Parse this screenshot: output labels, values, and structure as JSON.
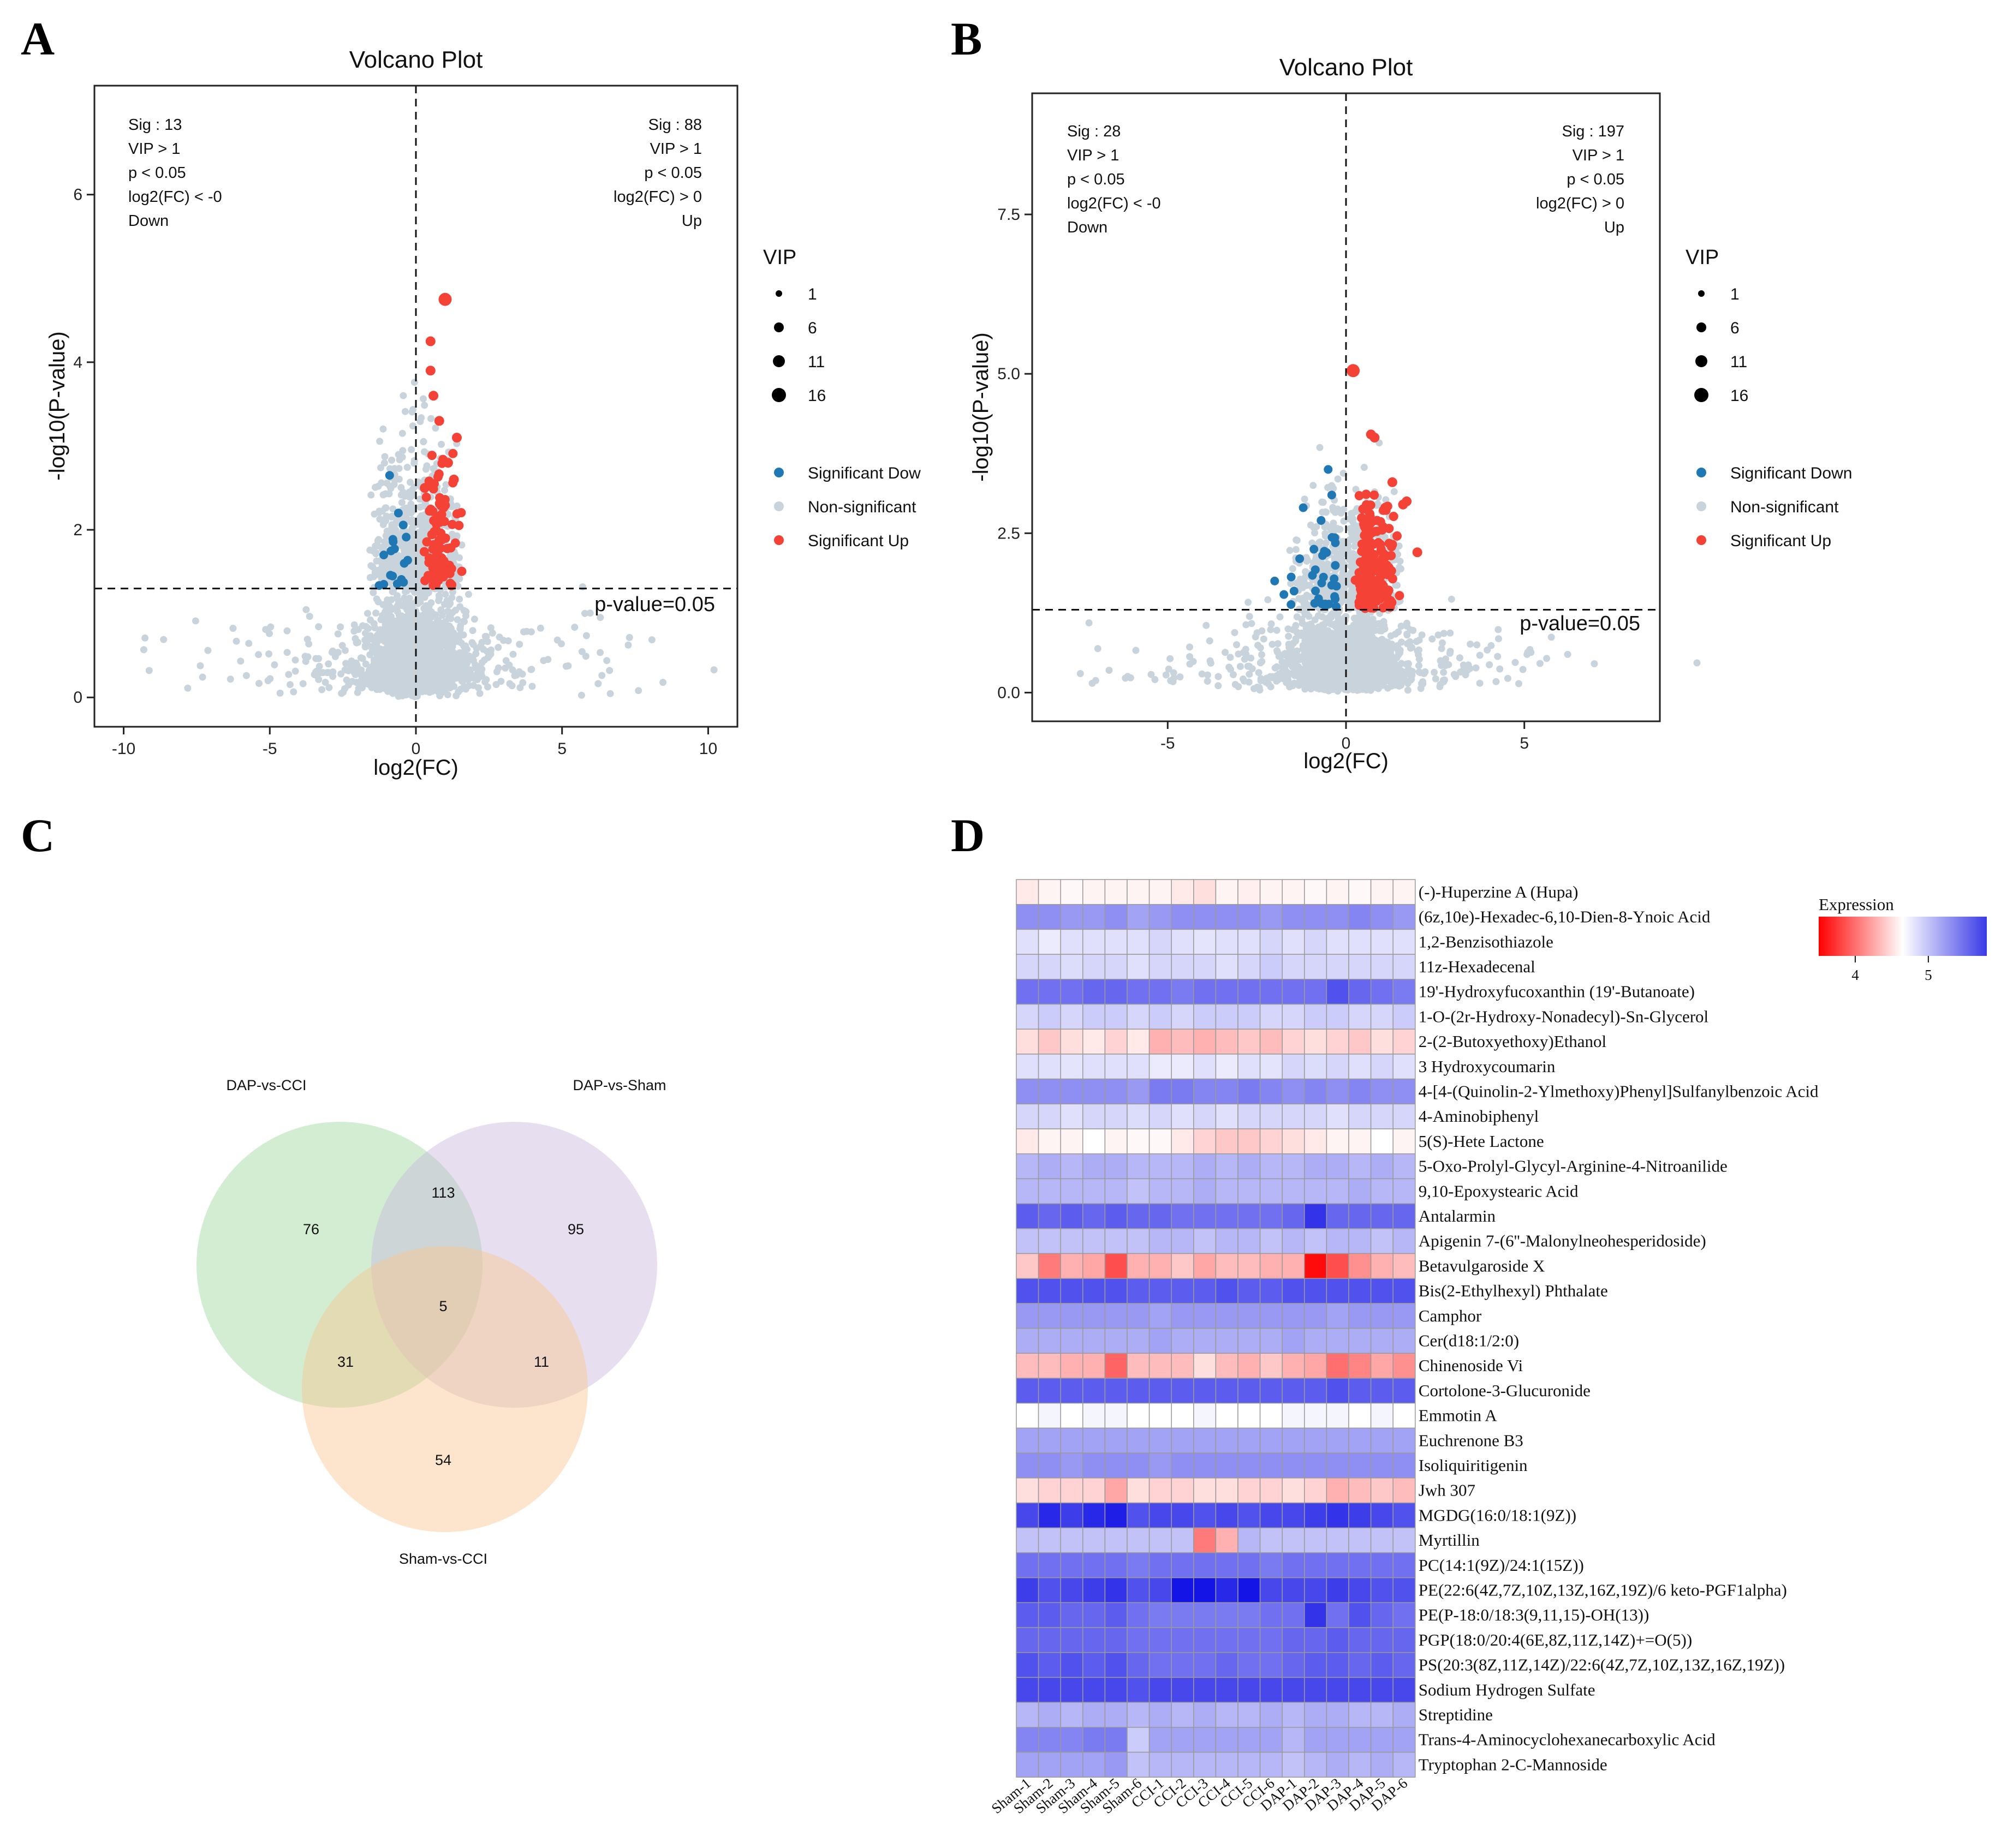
{
  "panels": {
    "A": "A",
    "B": "B",
    "C": "C",
    "D": "D"
  },
  "colors": {
    "down": "#1f77b4",
    "up": "#f44336",
    "nonsig": "#c9d3dc",
    "venn_dap_cci": "#8fd18f",
    "venn_dap_sham": "#c9b8dc",
    "venn_sham_cci": "#f8c58e"
  },
  "chart_data": [
    {
      "id": "A",
      "type": "scatter",
      "title": "Volcano Plot",
      "xlabel": "log2(FC)",
      "ylabel": "-log10(P-value)",
      "xlim": [
        -11,
        11
      ],
      "ylim": [
        -0.35,
        7.3
      ],
      "xticks": [
        -10,
        -5,
        0,
        5,
        10
      ],
      "yticks": [
        0,
        2,
        4,
        6
      ],
      "threshold_y": 1.3,
      "threshold_label": "p-value=0.05",
      "annotation_left": [
        "Sig : 13",
        "VIP > 1",
        "p < 0.05",
        "log2(FC) < -0",
        "Down"
      ],
      "annotation_right": [
        "Sig : 88",
        "VIP > 1",
        "p < 0.05",
        "log2(FC) > 0",
        "Up"
      ],
      "legend_vip_title": "VIP",
      "legend_vip": [
        "1",
        "6",
        "11",
        "16"
      ],
      "legend_groups": [
        "Significant Dow",
        "Non-significant",
        "Significant Up"
      ],
      "n_down": 13,
      "n_up": 88,
      "highlight_up": [
        [
          1.0,
          4.75
        ],
        [
          0.5,
          4.25
        ],
        [
          0.5,
          3.9
        ],
        [
          0.6,
          3.6
        ],
        [
          0.8,
          3.3
        ],
        [
          1.4,
          3.1
        ],
        [
          1.1,
          2.8
        ],
        [
          1.3,
          2.6
        ],
        [
          0.3,
          2.5
        ]
      ],
      "highlight_down": [
        [
          -0.9,
          2.65
        ],
        [
          -0.6,
          2.2
        ],
        [
          -1.1,
          1.7
        ],
        [
          -0.4,
          1.6
        ],
        [
          -1.1,
          1.35
        ],
        [
          -0.5,
          1.4
        ]
      ]
    },
    {
      "id": "B",
      "type": "scatter",
      "title": "Volcano Plot",
      "xlabel": "log2(FC)",
      "ylabel": "-log10(P-value)",
      "xlim": [
        -8.8,
        8.8
      ],
      "ylim": [
        -0.45,
        9.4
      ],
      "xticks": [
        -5,
        0,
        5
      ],
      "yticks": [
        0.0,
        2.5,
        5.0,
        7.5
      ],
      "ytick_labels": [
        "0.0",
        "2.5",
        "5.0",
        "7.5"
      ],
      "threshold_y": 1.3,
      "threshold_label": "p-value=0.05",
      "annotation_left": [
        "Sig : 28",
        "VIP > 1",
        "p < 0.05",
        "log2(FC) < -0",
        "Down"
      ],
      "annotation_right": [
        "Sig : 197",
        "VIP > 1",
        "p < 0.05",
        "log2(FC) > 0",
        "Up"
      ],
      "legend_vip_title": "VIP",
      "legend_vip": [
        "1",
        "6",
        "11",
        "16"
      ],
      "legend_groups": [
        "Significant Down",
        "Non-significant",
        "Significant Up"
      ],
      "n_down": 28,
      "n_up": 197,
      "highlight_up": [
        [
          0.2,
          5.05
        ],
        [
          0.7,
          4.05
        ],
        [
          0.8,
          4.0
        ],
        [
          1.3,
          3.3
        ],
        [
          1.7,
          3.0
        ],
        [
          1.6,
          2.95
        ],
        [
          2.0,
          2.2
        ],
        [
          1.1,
          2.9
        ]
      ],
      "highlight_down": [
        [
          -0.5,
          3.5
        ],
        [
          -0.4,
          3.1
        ],
        [
          -1.2,
          2.9
        ],
        [
          -0.7,
          2.7
        ],
        [
          -0.9,
          2.25
        ],
        [
          -1.3,
          2.1
        ],
        [
          -2.0,
          1.75
        ],
        [
          -0.3,
          2.35
        ]
      ]
    },
    {
      "id": "C",
      "type": "venn",
      "sets": [
        "DAP-vs-CCI",
        "DAP-vs-Sham",
        "Sham-vs-CCI"
      ],
      "regions": {
        "only_dap_cci": 76,
        "only_dap_sham": 95,
        "only_sham_cci": 54,
        "dap_cci_dap_sham": 113,
        "dap_cci_sham_cci": 31,
        "dap_sham_sham_cci": 11,
        "all": 5
      }
    },
    {
      "id": "D",
      "type": "heatmap",
      "legend_title": "Expression",
      "legend_ticks": [
        "4",
        "5"
      ],
      "legend_range": [
        3.5,
        5.8
      ],
      "columns": [
        "Sham-1",
        "Sham-2",
        "Sham-3",
        "Sham-4",
        "Sham-5",
        "Sham-6",
        "CCI-1",
        "CCI-2",
        "CCI-3",
        "CCI-4",
        "CCI-5",
        "CCI-6",
        "DAP-1",
        "DAP-2",
        "DAP-3",
        "DAP-4",
        "DAP-5",
        "DAP-6"
      ],
      "rows": [
        "(-)-Huperzine A (Hupa)",
        "(6z,10e)-Hexadec-6,10-Dien-8-Ynoic Acid",
        "1,2-Benzisothiazole",
        "11z-Hexadecenal",
        "19'-Hydroxyfucoxanthin (19'-Butanoate)",
        "1-O-(2r-Hydroxy-Nonadecyl)-Sn-Glycerol",
        "2-(2-Butoxyethoxy)Ethanol",
        "3 Hydroxycoumarin",
        "4-[4-(Quinolin-2-Ylmethoxy)Phenyl]Sulfanylbenzoic Acid",
        "4-Aminobiphenyl",
        "5(S)-Hete Lactone",
        "5-Oxo-Prolyl-Glycyl-Arginine-4-Nitroanilide",
        "9,10-Epoxystearic Acid",
        "Antalarmin",
        "Apigenin 7-(6''-Malonylneohesperidoside)",
        "Betavulgaroside X",
        "Bis(2-Ethylhexyl) Phthalate",
        "Camphor",
        "Cer(d18:1/2:0)",
        "Chinenoside Vi",
        "Cortolone-3-Glucuronide",
        "Emmotin A",
        "Euchrenone B3",
        "Isoliquiritigenin",
        "Jwh 307",
        "MGDG(16:0/18:1(9Z))",
        "Myrtillin",
        "PC(14:1(9Z)/24:1(15Z))",
        "PE(22:6(4Z,7Z,10Z,13Z,16Z,19Z)/6 keto-PGF1alpha)",
        "PE(P-18:0/18:3(9,11,15)-OH(13))",
        "PGP(18:0/20:4(6E,8Z,11Z,14Z)+=O(5))",
        "PS(20:3(8Z,11Z,14Z)/22:6(4Z,7Z,10Z,13Z,16Z,19Z))",
        "Sodium Hydrogen Sulfate",
        "Streptidine",
        "Trans-4-Aminocyclohexanecarboxylic Acid",
        "Tryptophan 2-C-Mannoside"
      ],
      "values": [
        [
          4.55,
          4.6,
          4.62,
          4.6,
          4.6,
          4.6,
          4.6,
          4.55,
          4.5,
          4.6,
          4.58,
          4.6,
          4.6,
          4.62,
          4.6,
          4.62,
          4.6,
          4.6
        ],
        [
          5.2,
          5.2,
          5.15,
          5.15,
          5.2,
          5.1,
          5.15,
          5.2,
          5.2,
          5.2,
          5.2,
          5.15,
          5.2,
          5.2,
          5.2,
          5.25,
          5.2,
          5.15
        ],
        [
          4.8,
          4.75,
          4.8,
          4.8,
          4.8,
          4.8,
          4.85,
          4.8,
          4.78,
          4.8,
          4.8,
          4.85,
          4.8,
          4.85,
          4.8,
          4.8,
          4.8,
          4.8
        ],
        [
          4.85,
          4.85,
          4.82,
          4.85,
          4.85,
          4.8,
          4.85,
          4.85,
          4.85,
          4.8,
          4.85,
          4.9,
          4.85,
          4.85,
          4.85,
          4.85,
          4.85,
          4.85
        ],
        [
          5.35,
          5.35,
          5.35,
          5.4,
          5.4,
          5.35,
          5.35,
          5.3,
          5.35,
          5.35,
          5.35,
          5.35,
          5.35,
          5.35,
          5.5,
          5.4,
          5.35,
          5.3
        ],
        [
          4.85,
          4.9,
          4.85,
          4.9,
          4.9,
          4.85,
          4.9,
          4.85,
          4.9,
          4.9,
          4.9,
          4.85,
          4.85,
          4.9,
          4.9,
          4.85,
          4.85,
          4.9
        ],
        [
          4.5,
          4.4,
          4.5,
          4.55,
          4.45,
          4.55,
          4.3,
          4.35,
          4.3,
          4.35,
          4.4,
          4.35,
          4.45,
          4.5,
          4.45,
          4.4,
          4.5,
          4.45
        ],
        [
          4.8,
          4.8,
          4.78,
          4.8,
          4.8,
          4.8,
          4.75,
          4.75,
          4.8,
          4.75,
          4.8,
          4.78,
          4.85,
          4.82,
          4.85,
          4.8,
          4.85,
          4.8
        ],
        [
          5.2,
          5.2,
          5.2,
          5.2,
          5.2,
          5.15,
          5.3,
          5.3,
          5.25,
          5.25,
          5.3,
          5.25,
          5.2,
          5.25,
          5.2,
          5.25,
          5.2,
          5.2
        ],
        [
          4.85,
          4.85,
          4.8,
          4.85,
          4.85,
          4.82,
          4.85,
          4.8,
          4.85,
          4.8,
          4.85,
          4.85,
          4.85,
          4.85,
          4.8,
          4.85,
          4.85,
          4.85
        ],
        [
          4.55,
          4.6,
          4.6,
          4.65,
          4.6,
          4.62,
          4.62,
          4.55,
          4.45,
          4.4,
          4.4,
          4.45,
          4.5,
          4.55,
          4.6,
          4.6,
          4.65,
          4.6
        ],
        [
          5.0,
          5.05,
          5.0,
          5.05,
          5.05,
          5.0,
          5.0,
          5.0,
          5.05,
          5.0,
          5.05,
          5.0,
          5.0,
          5.05,
          5.05,
          5.0,
          5.05,
          5.0
        ],
        [
          5.0,
          5.0,
          5.0,
          5.0,
          5.0,
          4.95,
          5.0,
          5.0,
          5.05,
          5.0,
          5.0,
          5.0,
          5.0,
          5.0,
          5.0,
          5.05,
          5.0,
          5.0
        ],
        [
          5.45,
          5.4,
          5.45,
          5.4,
          5.45,
          5.4,
          5.4,
          5.35,
          5.35,
          5.35,
          5.35,
          5.35,
          5.4,
          5.65,
          5.4,
          5.4,
          5.4,
          5.4
        ],
        [
          4.95,
          4.95,
          4.95,
          4.95,
          4.95,
          4.95,
          5.0,
          5.0,
          4.95,
          5.0,
          5.0,
          4.95,
          5.0,
          4.95,
          5.0,
          5.0,
          4.95,
          5.0
        ],
        [
          4.4,
          4.05,
          4.3,
          4.25,
          3.85,
          4.3,
          4.3,
          4.4,
          4.25,
          4.35,
          4.35,
          4.3,
          4.3,
          3.55,
          3.85,
          4.15,
          4.3,
          4.35
        ],
        [
          5.5,
          5.5,
          5.5,
          5.5,
          5.5,
          5.45,
          5.45,
          5.45,
          5.45,
          5.5,
          5.45,
          5.45,
          5.5,
          5.5,
          5.5,
          5.5,
          5.5,
          5.5
        ],
        [
          5.15,
          5.15,
          5.15,
          5.15,
          5.15,
          5.15,
          5.1,
          5.15,
          5.15,
          5.15,
          5.15,
          5.15,
          5.15,
          5.15,
          5.1,
          5.15,
          5.15,
          5.15
        ],
        [
          5.05,
          5.05,
          5.05,
          5.05,
          5.05,
          5.05,
          5.1,
          5.05,
          5.05,
          5.05,
          5.05,
          5.05,
          5.1,
          5.05,
          5.05,
          5.05,
          5.05,
          5.05
        ],
        [
          4.35,
          4.35,
          4.3,
          4.3,
          3.95,
          4.35,
          4.35,
          4.35,
          4.5,
          4.35,
          4.3,
          4.4,
          4.3,
          4.25,
          4.0,
          4.1,
          4.25,
          4.15
        ],
        [
          5.45,
          5.45,
          5.45,
          5.45,
          5.45,
          5.45,
          5.45,
          5.45,
          5.45,
          5.45,
          5.45,
          5.45,
          5.45,
          5.45,
          5.5,
          5.45,
          5.45,
          5.45
        ],
        [
          4.65,
          4.7,
          4.65,
          4.7,
          4.7,
          4.65,
          4.65,
          4.65,
          4.7,
          4.65,
          4.65,
          4.65,
          4.7,
          4.7,
          4.7,
          4.65,
          4.7,
          4.65
        ],
        [
          5.1,
          5.1,
          5.1,
          5.1,
          5.1,
          5.1,
          5.1,
          5.1,
          5.1,
          5.1,
          5.1,
          5.1,
          5.1,
          5.1,
          5.1,
          5.1,
          5.1,
          5.1
        ],
        [
          5.2,
          5.2,
          5.15,
          5.2,
          5.2,
          5.2,
          5.15,
          5.2,
          5.2,
          5.2,
          5.2,
          5.2,
          5.2,
          5.2,
          5.2,
          5.2,
          5.2,
          5.2
        ],
        [
          4.5,
          4.45,
          4.45,
          4.45,
          4.25,
          4.5,
          4.45,
          4.45,
          4.5,
          4.5,
          4.45,
          4.45,
          4.5,
          4.45,
          4.3,
          4.35,
          4.4,
          4.35
        ],
        [
          5.55,
          5.7,
          5.6,
          5.7,
          5.75,
          5.5,
          5.55,
          5.55,
          5.5,
          5.55,
          5.5,
          5.55,
          5.55,
          5.6,
          5.65,
          5.6,
          5.55,
          5.5
        ],
        [
          4.95,
          4.95,
          4.95,
          4.95,
          4.95,
          4.95,
          4.95,
          4.95,
          4.05,
          4.3,
          5.0,
          4.95,
          4.95,
          4.95,
          4.95,
          4.95,
          4.95,
          4.95
        ],
        [
          5.35,
          5.35,
          5.35,
          5.35,
          5.35,
          5.3,
          5.35,
          5.35,
          5.35,
          5.35,
          5.35,
          5.3,
          5.35,
          5.35,
          5.35,
          5.35,
          5.35,
          5.35
        ],
        [
          5.6,
          5.5,
          5.55,
          5.6,
          5.65,
          5.5,
          5.55,
          5.8,
          5.8,
          5.7,
          5.85,
          5.55,
          5.55,
          5.55,
          5.6,
          5.55,
          5.5,
          5.5
        ],
        [
          5.45,
          5.45,
          5.4,
          5.4,
          5.45,
          5.35,
          5.3,
          5.3,
          5.3,
          5.3,
          5.3,
          5.35,
          5.35,
          5.65,
          5.35,
          5.5,
          5.4,
          5.35
        ],
        [
          5.4,
          5.4,
          5.4,
          5.4,
          5.4,
          5.35,
          5.35,
          5.35,
          5.35,
          5.35,
          5.35,
          5.35,
          5.4,
          5.4,
          5.45,
          5.4,
          5.4,
          5.4
        ],
        [
          5.5,
          5.45,
          5.5,
          5.45,
          5.5,
          5.4,
          5.35,
          5.35,
          5.35,
          5.4,
          5.35,
          5.35,
          5.4,
          5.45,
          5.45,
          5.4,
          5.45,
          5.4
        ],
        [
          5.55,
          5.55,
          5.55,
          5.55,
          5.55,
          5.5,
          5.55,
          5.55,
          5.55,
          5.55,
          5.55,
          5.55,
          5.55,
          5.55,
          5.55,
          5.55,
          5.55,
          5.55
        ],
        [
          5.0,
          5.05,
          5.0,
          5.05,
          5.05,
          5.0,
          5.05,
          5.0,
          5.05,
          5.0,
          5.0,
          5.05,
          5.0,
          5.05,
          5.05,
          5.0,
          5.0,
          5.05
        ],
        [
          5.25,
          5.25,
          5.25,
          5.3,
          5.3,
          4.9,
          5.1,
          5.1,
          5.1,
          5.1,
          5.1,
          5.1,
          5.0,
          5.1,
          5.1,
          5.1,
          5.1,
          5.1
        ],
        [
          5.1,
          5.1,
          5.1,
          5.1,
          5.15,
          4.95,
          5.0,
          5.0,
          5.0,
          5.0,
          5.0,
          5.0,
          4.95,
          5.0,
          5.05,
          5.0,
          5.05,
          5.0
        ]
      ]
    }
  ]
}
